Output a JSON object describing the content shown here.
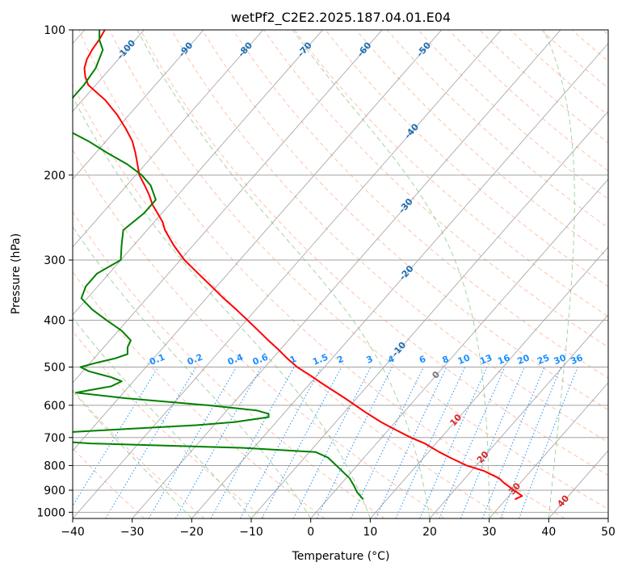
{
  "chart_data": {
    "type": "line",
    "chart_kind": "skew-T log-P diagram",
    "title": "wetPf2_C2E2.2025.187.04.01.E04",
    "xlabel": "Temperature (°C)",
    "ylabel": "Pressure (hPa)",
    "xlim": [
      -40,
      50
    ],
    "ylim": [
      1030,
      100
    ],
    "y_scale": "log",
    "grid": true,
    "x_ticks": [
      -40,
      -30,
      -20,
      -10,
      0,
      10,
      20,
      30,
      40,
      50
    ],
    "y_ticks": [
      100,
      200,
      300,
      400,
      500,
      600,
      700,
      800,
      900,
      1000
    ],
    "x_tick_labels": [
      "−40",
      "−30",
      "−20",
      "−10",
      "0",
      "10",
      "20",
      "30",
      "40",
      "50"
    ],
    "y_tick_labels": [
      "100",
      "200",
      "300",
      "400",
      "500",
      "600",
      "700",
      "800",
      "900",
      "1000"
    ],
    "series": [
      {
        "role": "temperature",
        "color": "#ff0000",
        "pressure": [
          940,
          925,
          900,
          870,
          850,
          820,
          800,
          770,
          750,
          720,
          700,
          670,
          650,
          620,
          600,
          580,
          560,
          540,
          520,
          500,
          480,
          460,
          440,
          420,
          400,
          380,
          360,
          340,
          320,
          300,
          280,
          260,
          250,
          240,
          230,
          220,
          210,
          200,
          190,
          180,
          170,
          160,
          150,
          140,
          130,
          125,
          120,
          115,
          110,
          105,
          100
        ],
        "temperature": [
          31.5,
          32.2,
          30.0,
          27.3,
          25.7,
          22.0,
          18.4,
          14.4,
          11.8,
          8.1,
          4.9,
          0.5,
          -2.4,
          -6.5,
          -9.2,
          -12.0,
          -15.0,
          -18.1,
          -21.2,
          -24.6,
          -27.5,
          -30.3,
          -33.4,
          -36.5,
          -39.8,
          -43.3,
          -47.1,
          -50.9,
          -55.0,
          -59.3,
          -63.2,
          -67.0,
          -68.6,
          -70.7,
          -72.9,
          -74.8,
          -77.0,
          -79.4,
          -81.3,
          -83.3,
          -85.6,
          -88.6,
          -92.0,
          -96.1,
          -101.3,
          -103.0,
          -104.4,
          -105.3,
          -105.8,
          -106.1,
          -106.6
        ]
      },
      {
        "role": "dewpoint",
        "color": "#008000",
        "pressure": [
          940,
          910,
          880,
          850,
          800,
          770,
          750,
          735,
          720,
          705,
          700,
          690,
          675,
          660,
          650,
          635,
          625,
          615,
          600,
          580,
          565,
          548,
          535,
          525,
          510,
          500,
          490,
          480,
          470,
          455,
          440,
          420,
          400,
          380,
          360,
          340,
          320,
          300,
          280,
          260,
          240,
          225,
          210,
          200,
          190,
          180,
          170,
          160,
          150,
          140,
          130,
          120,
          110,
          105,
          100
        ],
        "temperature": [
          6.0,
          4.0,
          2.4,
          0.6,
          -3.5,
          -6.1,
          -9.0,
          -22.0,
          -48.0,
          -60.0,
          -65.0,
          -60.0,
          -47.0,
          -33.0,
          -27.0,
          -22.0,
          -22.5,
          -25.0,
          -34.0,
          -49.0,
          -58.0,
          -53.0,
          -52.0,
          -54.3,
          -59.0,
          -61.0,
          -59.0,
          -56.5,
          -55.0,
          -56.0,
          -56.5,
          -59.5,
          -63.5,
          -67.5,
          -71.0,
          -72.0,
          -72.0,
          -70.0,
          -72.0,
          -74.0,
          -73.0,
          -73.0,
          -76.0,
          -79.0,
          -83.0,
          -88.0,
          -93.0,
          -99.0,
          -102.0,
          -102.0,
          -102.0,
          -102.5,
          -104.0,
          -106.0,
          -107.5
        ]
      }
    ],
    "background_lines": {
      "isotherms": {
        "color": "#808080",
        "values": [
          -110,
          -100,
          -90,
          -80,
          -70,
          -60,
          -50,
          -40,
          -30,
          -20,
          -10,
          0,
          10,
          20,
          30,
          40,
          50
        ]
      },
      "isotherm_labels": {
        "values": [
          -100,
          -90,
          -80,
          -70,
          -60,
          -50,
          -40,
          -30,
          -20,
          -10,
          0,
          10,
          20,
          30,
          40
        ],
        "text": [
          "-100",
          "-90",
          "-80",
          "-70",
          "-60",
          "-50",
          "-40",
          "-30",
          "-20",
          "-10",
          "0",
          "10",
          "20",
          "30",
          "40"
        ],
        "colors": {
          "negative": "#1f6fb2",
          "zero": "#777777",
          "positive": "#d62728"
        }
      },
      "dry_adiabats": {
        "color": "#ffa07a",
        "style": "dashed",
        "theta_c": [
          -30,
          -20,
          -10,
          0,
          10,
          20,
          30,
          40,
          50,
          60,
          70,
          80,
          90,
          100,
          110,
          120,
          130,
          140,
          150,
          160,
          170,
          180,
          190,
          200,
          210,
          220
        ]
      },
      "moist_adiabats": {
        "color": "#90c890",
        "style": "dashed",
        "theta_w_c": [
          -20,
          -10,
          0,
          10,
          20,
          30,
          40
        ]
      },
      "mixing_ratio_lines": {
        "color": "#1e90ff",
        "style": "dotted",
        "values": [
          0.1,
          0.2,
          0.4,
          0.6,
          1,
          1.5,
          2,
          3,
          4,
          6,
          8,
          10,
          13,
          16,
          20,
          25,
          30,
          36
        ],
        "labels": [
          "0.1",
          "0.2",
          "0.4",
          "0.6",
          "1",
          "1.5",
          "2",
          "3",
          "4",
          "6",
          "8",
          "10",
          "13",
          "16",
          "20",
          "25",
          "30",
          "36"
        ]
      }
    }
  }
}
